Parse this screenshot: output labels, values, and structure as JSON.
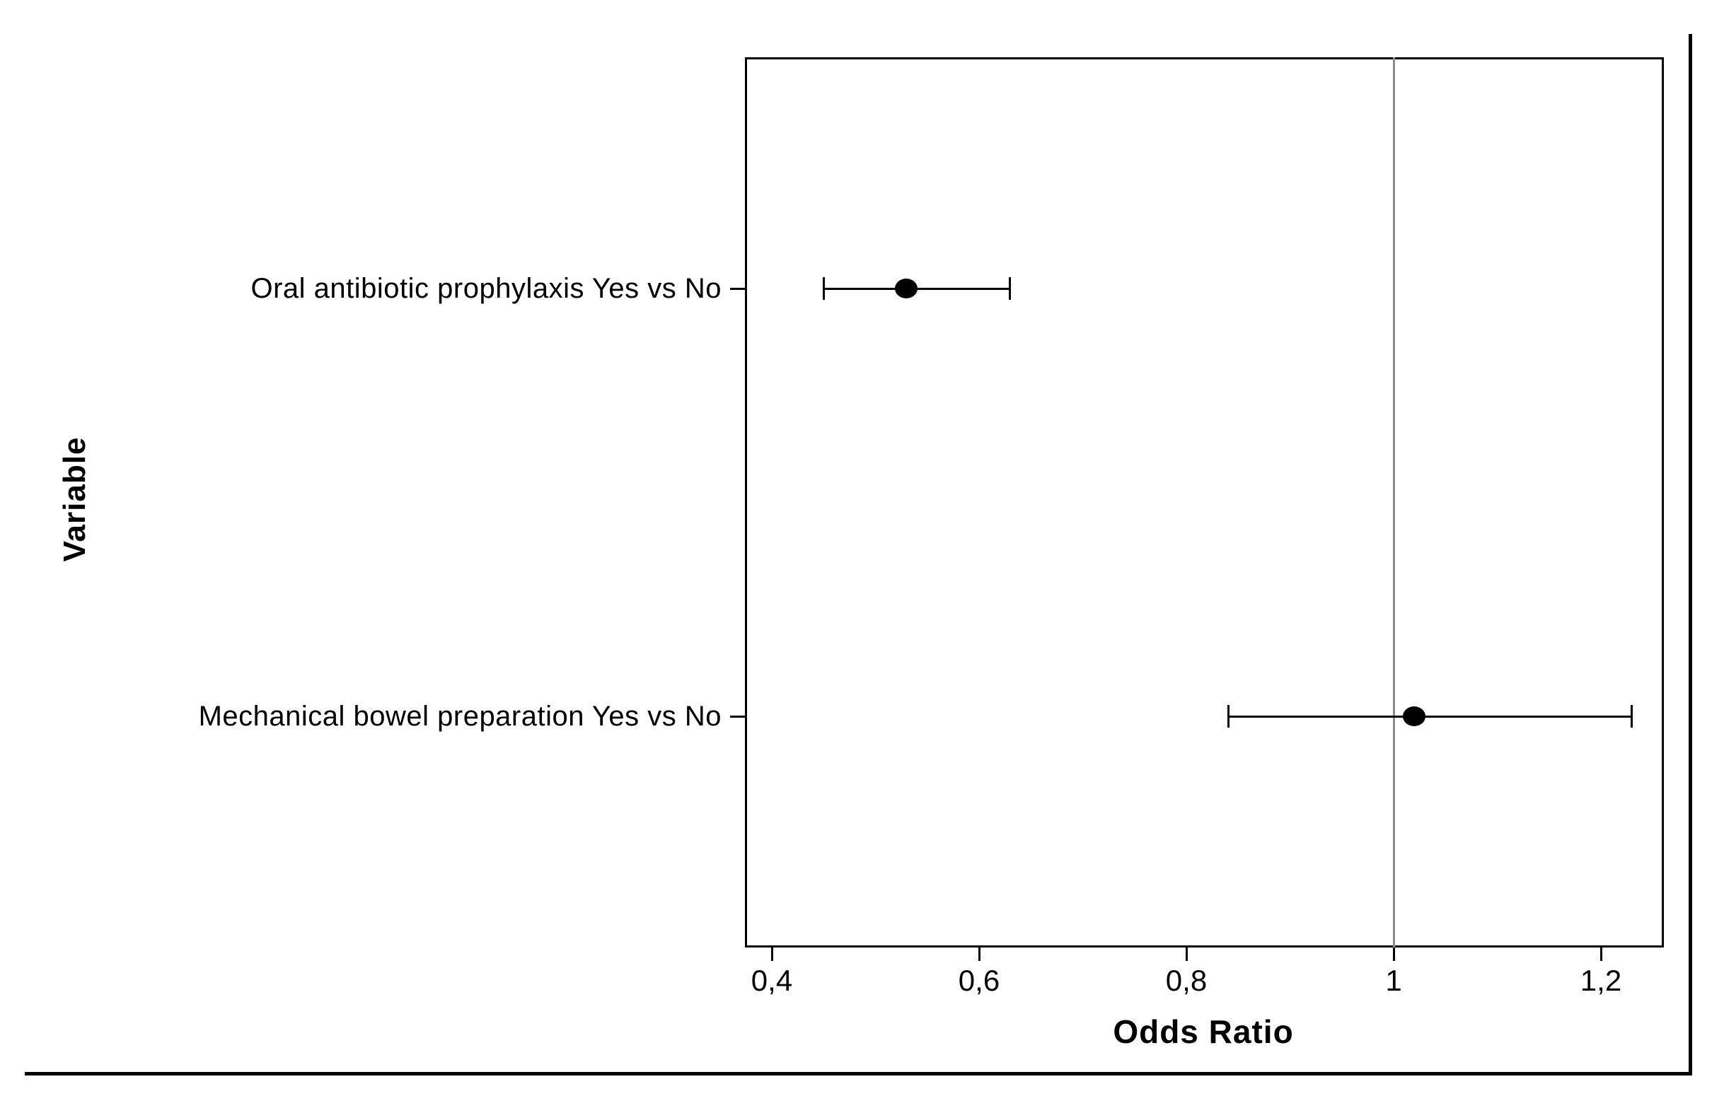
{
  "figure": {
    "background_color": "#ffffff",
    "line_color": "#000000",
    "reference_line_color": "#8c8c8c"
  },
  "chart_data": {
    "type": "scatter",
    "subtype": "forest-plot-horizontal-errorbar",
    "title": "",
    "xlabel": "Odds Ratio",
    "ylabel": "Variable",
    "xlim": [
      0.37,
      1.26
    ],
    "grid": false,
    "legend": "none",
    "decimal_separator": ",",
    "reference_line_x": 1.0,
    "x_axis": {
      "label": "Odds Ratio",
      "tick_values": [
        0.4,
        0.6,
        0.8,
        1.0,
        1.2
      ],
      "tick_labels": [
        "0,4",
        "0,6",
        "0,8",
        "1",
        "1,2"
      ]
    },
    "y_axis": {
      "label": "Variable",
      "categories": [
        "Oral antibiotic prophylaxis Yes vs No",
        "Mechanical bowel preparation Yes vs No"
      ]
    },
    "rows": [
      {
        "label": "Oral antibiotic prophylaxis Yes vs No",
        "odds_ratio": 0.53,
        "ci_low": 0.45,
        "ci_high": 0.63
      },
      {
        "label": "Mechanical bowel preparation Yes vs No",
        "odds_ratio": 1.02,
        "ci_low": 0.84,
        "ci_high": 1.23
      }
    ]
  }
}
